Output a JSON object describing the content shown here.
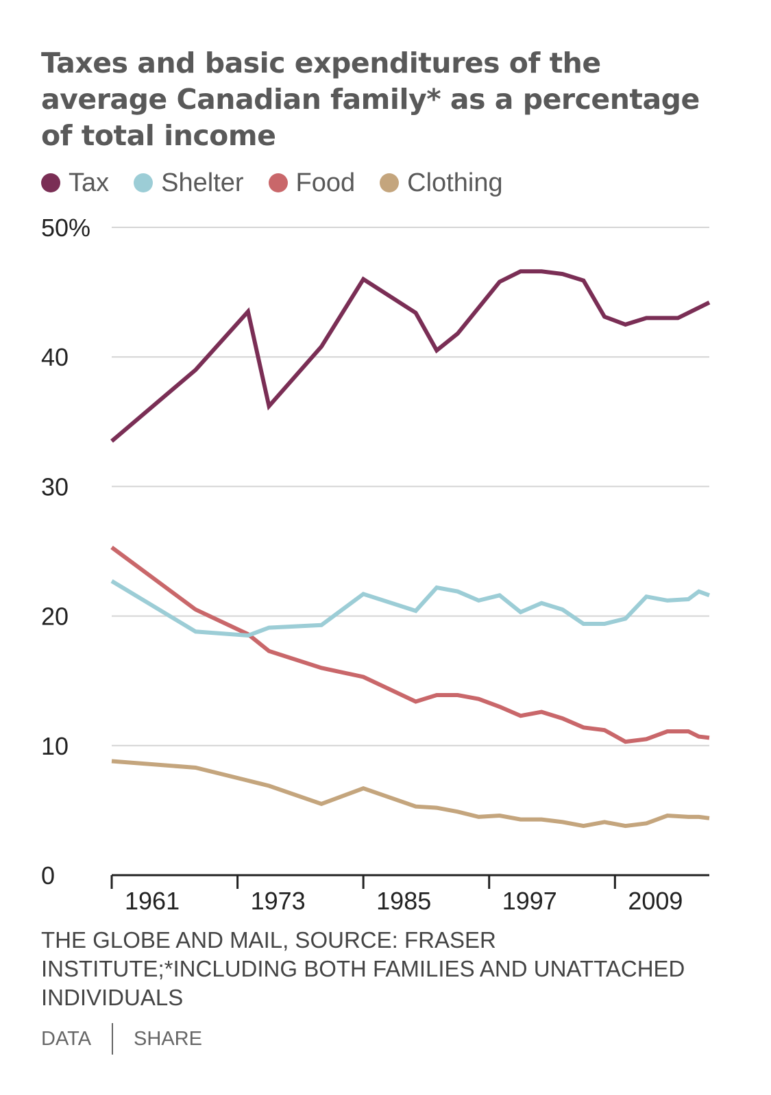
{
  "title": "Taxes and basic expenditures of the average Canadian family* as a percentage of total income",
  "legend": [
    {
      "label": "Tax",
      "color": "#7a2e55"
    },
    {
      "label": "Shelter",
      "color": "#9ccdd6"
    },
    {
      "label": "Food",
      "color": "#c9676a"
    },
    {
      "label": "Clothing",
      "color": "#c4a57d"
    }
  ],
  "source": "THE GLOBE AND MAIL, SOURCE: FRASER INSTITUTE;*INCLUDING BOTH FAMILIES AND UNATTACHED INDIVIDUALS",
  "footer": {
    "data_label": "DATA",
    "share_label": "SHARE"
  },
  "chart_data": {
    "type": "line",
    "title": "Taxes and basic expenditures of the average Canadian family* as a percentage of total income",
    "xlabel": "",
    "ylabel": "",
    "xlim": [
      1961,
      2018
    ],
    "ylim": [
      0,
      50
    ],
    "y_ticks": [
      0,
      10,
      20,
      30,
      40,
      50
    ],
    "y_tick_labels": [
      "0",
      "10",
      "20",
      "30",
      "40",
      "50%"
    ],
    "x_ticks": [
      1961,
      1973,
      1985,
      1997,
      2009
    ],
    "x_tick_labels": [
      "1961",
      "1973",
      "1985",
      "1997",
      "2009"
    ],
    "grid": "horizontal",
    "legend_position": "top-left",
    "series": [
      {
        "name": "Tax",
        "color": "#7a2e55",
        "points": [
          [
            1961,
            33.5
          ],
          [
            1969,
            39.0
          ],
          [
            1974,
            43.5
          ],
          [
            1976,
            36.2
          ],
          [
            1981,
            40.8
          ],
          [
            1985,
            46.0
          ],
          [
            1990,
            43.4
          ],
          [
            1992,
            40.5
          ],
          [
            1994,
            41.8
          ],
          [
            1998,
            45.8
          ],
          [
            2000,
            46.6
          ],
          [
            2002,
            46.6
          ],
          [
            2004,
            46.4
          ],
          [
            2006,
            45.9
          ],
          [
            2008,
            43.1
          ],
          [
            2010,
            42.5
          ],
          [
            2012,
            43.0
          ],
          [
            2015,
            43.0
          ],
          [
            2017,
            43.8
          ],
          [
            2018,
            44.2
          ]
        ]
      },
      {
        "name": "Shelter",
        "color": "#9ccdd6",
        "points": [
          [
            1961,
            22.7
          ],
          [
            1969,
            18.8
          ],
          [
            1974,
            18.5
          ],
          [
            1976,
            19.1
          ],
          [
            1981,
            19.3
          ],
          [
            1985,
            21.7
          ],
          [
            1990,
            20.4
          ],
          [
            1992,
            22.2
          ],
          [
            1994,
            21.9
          ],
          [
            1996,
            21.2
          ],
          [
            1998,
            21.6
          ],
          [
            2000,
            20.3
          ],
          [
            2002,
            21.0
          ],
          [
            2004,
            20.5
          ],
          [
            2006,
            19.4
          ],
          [
            2008,
            19.4
          ],
          [
            2010,
            19.8
          ],
          [
            2012,
            21.5
          ],
          [
            2014,
            21.2
          ],
          [
            2016,
            21.3
          ],
          [
            2017,
            21.9
          ],
          [
            2018,
            21.6
          ]
        ]
      },
      {
        "name": "Food",
        "color": "#c9676a",
        "points": [
          [
            1961,
            25.3
          ],
          [
            1969,
            20.5
          ],
          [
            1974,
            18.6
          ],
          [
            1976,
            17.3
          ],
          [
            1981,
            16.0
          ],
          [
            1985,
            15.3
          ],
          [
            1990,
            13.4
          ],
          [
            1992,
            13.9
          ],
          [
            1994,
            13.9
          ],
          [
            1996,
            13.6
          ],
          [
            1998,
            13.0
          ],
          [
            2000,
            12.3
          ],
          [
            2002,
            12.6
          ],
          [
            2004,
            12.1
          ],
          [
            2006,
            11.4
          ],
          [
            2008,
            11.2
          ],
          [
            2010,
            10.3
          ],
          [
            2012,
            10.5
          ],
          [
            2014,
            11.1
          ],
          [
            2016,
            11.1
          ],
          [
            2017,
            10.7
          ],
          [
            2018,
            10.6
          ]
        ]
      },
      {
        "name": "Clothing",
        "color": "#c4a57d",
        "points": [
          [
            1961,
            8.8
          ],
          [
            1969,
            8.3
          ],
          [
            1974,
            7.3
          ],
          [
            1976,
            6.9
          ],
          [
            1981,
            5.5
          ],
          [
            1985,
            6.7
          ],
          [
            1990,
            5.3
          ],
          [
            1992,
            5.2
          ],
          [
            1994,
            4.9
          ],
          [
            1996,
            4.5
          ],
          [
            1998,
            4.6
          ],
          [
            2000,
            4.3
          ],
          [
            2002,
            4.3
          ],
          [
            2004,
            4.1
          ],
          [
            2006,
            3.8
          ],
          [
            2008,
            4.1
          ],
          [
            2010,
            3.8
          ],
          [
            2012,
            4.0
          ],
          [
            2014,
            4.6
          ],
          [
            2016,
            4.5
          ],
          [
            2017,
            4.5
          ],
          [
            2018,
            4.4
          ]
        ]
      }
    ]
  }
}
